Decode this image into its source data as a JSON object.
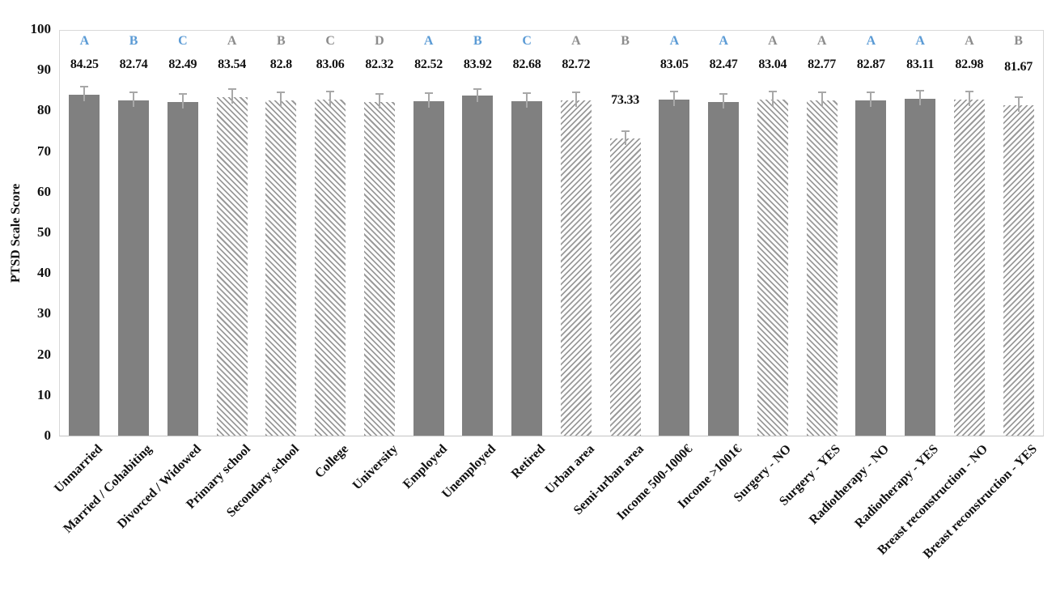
{
  "chart_data": {
    "type": "bar",
    "title": "",
    "xlabel": "",
    "ylabel": "PTSD Scale Score",
    "ylim": [
      0,
      100
    ],
    "yticks": [
      0,
      10,
      20,
      30,
      40,
      50,
      60,
      70,
      80,
      90,
      100
    ],
    "grid": false,
    "legend": "none",
    "bars": [
      {
        "category": "Unmarried",
        "value": 84.25,
        "error": 2,
        "letter": "A",
        "letter_color": "blue",
        "pattern": "solid",
        "group": "marital-status"
      },
      {
        "category": "Married / Cohabiting",
        "value": 82.74,
        "error": 2,
        "letter": "B",
        "letter_color": "blue",
        "pattern": "solid",
        "group": "marital-status"
      },
      {
        "category": "Divorced / Widowed",
        "value": 82.49,
        "error": 2,
        "letter": "C",
        "letter_color": "blue",
        "pattern": "solid",
        "group": "marital-status"
      },
      {
        "category": "Primary school",
        "value": 83.54,
        "error": 2,
        "letter": "A",
        "letter_color": "gray",
        "pattern": "hatch-backslash",
        "group": "education"
      },
      {
        "category": "Secondary school",
        "value": 82.8,
        "error": 2,
        "letter": "B",
        "letter_color": "gray",
        "pattern": "hatch-backslash",
        "group": "education"
      },
      {
        "category": "College",
        "value": 83.06,
        "error": 2,
        "letter": "C",
        "letter_color": "gray",
        "pattern": "hatch-backslash",
        "group": "education"
      },
      {
        "category": "University",
        "value": 82.32,
        "error": 2,
        "letter": "D",
        "letter_color": "gray",
        "pattern": "hatch-backslash",
        "group": "education"
      },
      {
        "category": "Employed",
        "value": 82.52,
        "error": 2,
        "letter": "A",
        "letter_color": "blue",
        "pattern": "solid",
        "group": "employment"
      },
      {
        "category": "Unemployed",
        "value": 83.92,
        "error": 1.6,
        "letter": "B",
        "letter_color": "blue",
        "pattern": "solid",
        "group": "employment"
      },
      {
        "category": "Retired",
        "value": 82.68,
        "error": 2,
        "letter": "C",
        "letter_color": "blue",
        "pattern": "solid",
        "group": "employment"
      },
      {
        "category": "Urban area",
        "value": 82.72,
        "error": 2,
        "letter": "A",
        "letter_color": "gray",
        "pattern": "hatch-slash",
        "group": "area-of-residence"
      },
      {
        "category": "Semi-urban area",
        "value": 73.33,
        "error": 1.8,
        "letter": "B",
        "letter_color": "gray",
        "pattern": "hatch-slash",
        "group": "area-of-residence"
      },
      {
        "category": "Income 500-1000€",
        "value": 83.05,
        "error": 2,
        "letter": "A",
        "letter_color": "blue",
        "pattern": "solid",
        "group": "income"
      },
      {
        "category": "Income >1001€",
        "value": 82.47,
        "error": 2,
        "letter": "A",
        "letter_color": "blue",
        "pattern": "solid",
        "group": "income"
      },
      {
        "category": "Surgery - NO",
        "value": 83.04,
        "error": 2,
        "letter": "A",
        "letter_color": "gray",
        "pattern": "hatch-backslash",
        "group": "surgery"
      },
      {
        "category": "Surgery - YES",
        "value": 82.77,
        "error": 2,
        "letter": "A",
        "letter_color": "gray",
        "pattern": "hatch-backslash",
        "group": "surgery"
      },
      {
        "category": "Radiotherapy - NO",
        "value": 82.87,
        "error": 2,
        "letter": "A",
        "letter_color": "blue",
        "pattern": "solid",
        "group": "radiotherapy"
      },
      {
        "category": "Radiotherapy - YES",
        "value": 83.11,
        "error": 2,
        "letter": "A",
        "letter_color": "blue",
        "pattern": "solid",
        "group": "radiotherapy"
      },
      {
        "category": "Breast reconstruction - NO",
        "value": 82.98,
        "error": 2,
        "letter": "A",
        "letter_color": "gray",
        "pattern": "hatch-slash",
        "group": "breast-reconstruction"
      },
      {
        "category": "Breast reconstruction - YES",
        "value": 81.67,
        "error": 2,
        "letter": "B",
        "letter_color": "gray",
        "pattern": "hatch-slash",
        "group": "breast-reconstruction"
      }
    ],
    "colors": {
      "bar_fill": "#808080",
      "hatch_line": "#9a9a9a",
      "error_bar": "#a8a8a8",
      "letter_blue": "#5b9bd5",
      "letter_gray": "#8c8c8c",
      "value_text": "#111111",
      "axis_text": "#111111",
      "plot_border": "#d8d8d8"
    }
  }
}
